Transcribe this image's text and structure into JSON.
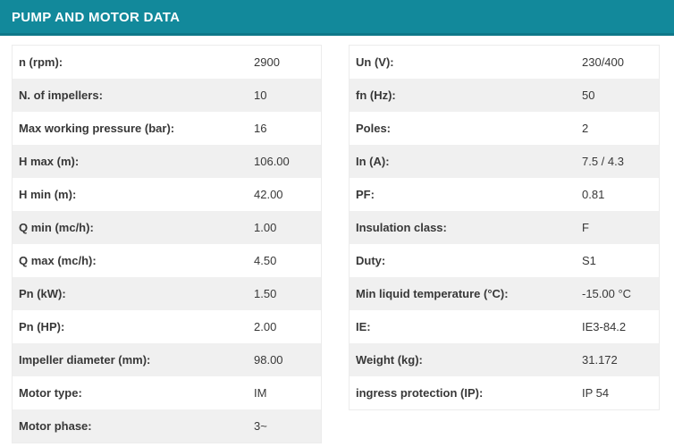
{
  "header": {
    "title": "PUMP AND MOTOR DATA"
  },
  "colors": {
    "header_bg": "#12899B",
    "header_border": "#0F7889",
    "row_alt_bg": "#F0F0F0",
    "table_border": "#ECECEC",
    "text": "#383838",
    "header_text": "#FFFFFF"
  },
  "tables": {
    "left": {
      "rows": [
        {
          "label": "n (rpm):",
          "value": "2900"
        },
        {
          "label": "N. of impellers:",
          "value": "10"
        },
        {
          "label": "Max working pressure (bar):",
          "value": "16"
        },
        {
          "label": "H max (m):",
          "value": "106.00"
        },
        {
          "label": "H min (m):",
          "value": "42.00"
        },
        {
          "label": "Q min (mc/h):",
          "value": "1.00"
        },
        {
          "label": "Q max (mc/h):",
          "value": "4.50"
        },
        {
          "label": "Pn (kW):",
          "value": "1.50"
        },
        {
          "label": "Pn (HP):",
          "value": "2.00"
        },
        {
          "label": "Impeller diameter (mm):",
          "value": "98.00"
        },
        {
          "label": "Motor type:",
          "value": "IM"
        },
        {
          "label": "Motor phase:",
          "value": "3~"
        }
      ]
    },
    "right": {
      "rows": [
        {
          "label": "Un (V):",
          "value": "230/400"
        },
        {
          "label": "fn (Hz):",
          "value": "50"
        },
        {
          "label": "Poles:",
          "value": "2"
        },
        {
          "label": "In (A):",
          "value": "7.5 / 4.3"
        },
        {
          "label": "PF:",
          "value": "0.81"
        },
        {
          "label": "Insulation class:",
          "value": "F"
        },
        {
          "label": "Duty:",
          "value": "S1"
        },
        {
          "label": "Min liquid temperature (°C):",
          "value": "-15.00 °C"
        },
        {
          "label": "IE:",
          "value": "IE3-84.2"
        },
        {
          "label": "Weight (kg):",
          "value": "31.172"
        },
        {
          "label": "ingress protection (IP):",
          "value": "IP 54"
        }
      ]
    }
  }
}
